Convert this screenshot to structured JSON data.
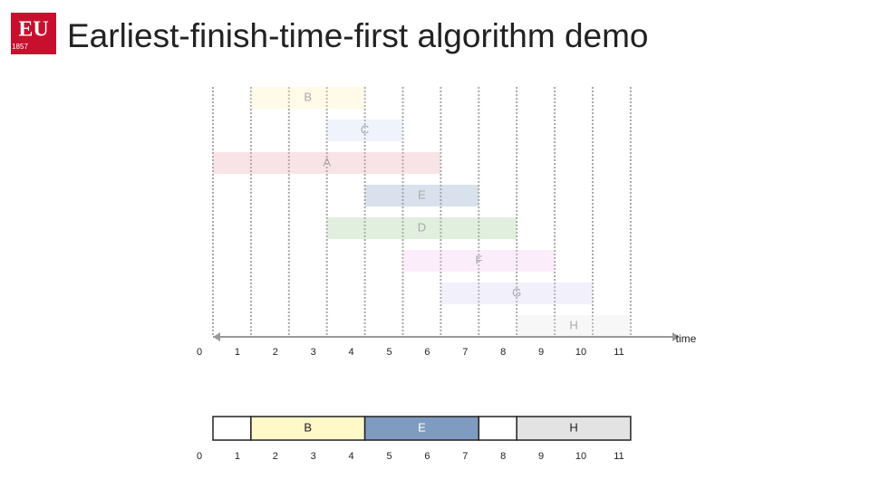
{
  "header": {
    "title": "Earliest-finish-time-first algorithm demo",
    "logo": {
      "text": "EU",
      "year": "1857"
    }
  },
  "jobs": [
    {
      "label": "B",
      "start": 1,
      "finish": 4,
      "color": "#fff2b3"
    },
    {
      "label": "C",
      "start": 3,
      "finish": 5,
      "color": "#c9daf5"
    },
    {
      "label": "A",
      "start": 0,
      "finish": 6,
      "color": "#e8a6ad"
    },
    {
      "label": "E",
      "start": 4,
      "finish": 7,
      "color": "#7f9cc0"
    },
    {
      "label": "D",
      "start": 3,
      "finish": 8,
      "color": "#9ccb96"
    },
    {
      "label": "F",
      "start": 5,
      "finish": 9,
      "color": "#f5c2ef"
    },
    {
      "label": "G",
      "start": 6,
      "finish": 10,
      "color": "#cfcdf3"
    },
    {
      "label": "H",
      "start": 8,
      "finish": 11,
      "color": "#e3e3e3"
    }
  ],
  "axis_ticks": [
    0,
    1,
    2,
    3,
    4,
    5,
    6,
    7,
    8,
    9,
    10,
    11
  ],
  "axis_label": "time",
  "schedule": [
    {
      "start": 0,
      "finish": 1,
      "color": "#ffffff"
    },
    {
      "label": "B",
      "start": 1,
      "finish": 4,
      "color": "#fff8c8"
    },
    {
      "label": "E",
      "start": 4,
      "finish": 7,
      "color": "#7f9cc0"
    },
    {
      "start": 7,
      "finish": 8,
      "color": "#ffffff"
    },
    {
      "label": "H",
      "start": 8,
      "finish": 11,
      "color": "#e3e3e3"
    }
  ]
}
